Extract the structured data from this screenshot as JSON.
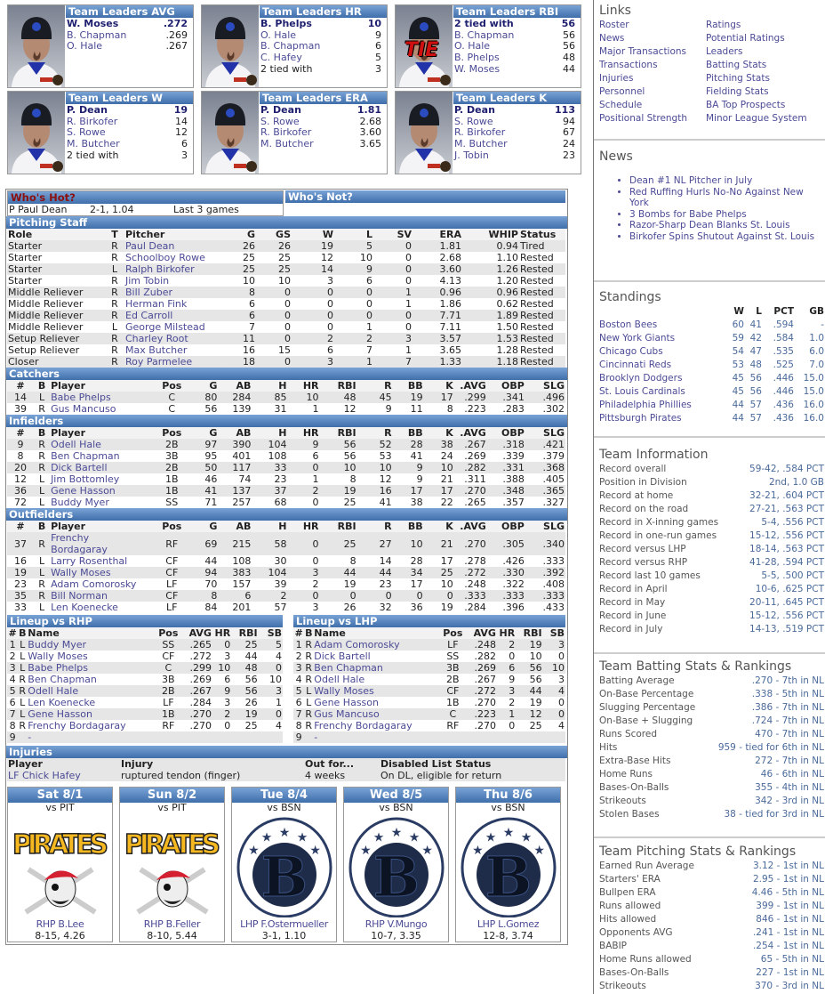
{
  "leaders": [
    {
      "title": "Team Leaders AVG",
      "tie": false,
      "rows": [
        [
          "W. Moses",
          ".272"
        ],
        [
          "B. Chapman",
          ".269"
        ],
        [
          "O. Hale",
          ".267"
        ]
      ]
    },
    {
      "title": "Team Leaders HR",
      "tie": false,
      "rows": [
        [
          "B. Phelps",
          "10"
        ],
        [
          "O. Hale",
          "9"
        ],
        [
          "B. Chapman",
          "6"
        ],
        [
          "C. Hafey",
          "5"
        ],
        [
          "2 tied with",
          "3"
        ]
      ]
    },
    {
      "title": "Team Leaders RBI",
      "tie": true,
      "tie_label": "TIE",
      "rows": [
        [
          "2 tied with",
          "56"
        ],
        [
          "B. Chapman",
          "56"
        ],
        [
          "O. Hale",
          "56"
        ],
        [
          "B. Phelps",
          "48"
        ],
        [
          "W. Moses",
          "44"
        ]
      ]
    },
    {
      "title": "Team Leaders W",
      "tie": false,
      "rows": [
        [
          "P. Dean",
          "19"
        ],
        [
          "R. Birkofer",
          "14"
        ],
        [
          "S. Rowe",
          "12"
        ],
        [
          "M. Butcher",
          "6"
        ],
        [
          "2 tied with",
          "3"
        ]
      ]
    },
    {
      "title": "Team Leaders ERA",
      "tie": false,
      "rows": [
        [
          "P. Dean",
          "1.81"
        ],
        [
          "S. Rowe",
          "2.68"
        ],
        [
          "R. Birkofer",
          "3.60"
        ],
        [
          "M. Butcher",
          "3.65"
        ]
      ]
    },
    {
      "title": "Team Leaders K",
      "tie": false,
      "rows": [
        [
          "P. Dean",
          "113"
        ],
        [
          "S. Rowe",
          "94"
        ],
        [
          "R. Birkofer",
          "67"
        ],
        [
          "M. Butcher",
          "24"
        ],
        [
          "J. Tobin",
          "23"
        ]
      ]
    }
  ],
  "hot": {
    "title": "Who's Hot?",
    "player": "P Paul Dean",
    "line": "2-1, 1.04",
    "span": "Last 3 games"
  },
  "not": {
    "title": "Who's Not?"
  },
  "pitching": {
    "title": "Pitching Staff",
    "headers": [
      "Role",
      "T",
      "Pitcher",
      "G",
      "GS",
      "W",
      "L",
      "SV",
      "ERA",
      "WHIP",
      "Status"
    ],
    "rows": [
      [
        "Starter",
        "R",
        "Paul Dean",
        "26",
        "26",
        "19",
        "5",
        "0",
        "1.81",
        "0.94",
        "Tired"
      ],
      [
        "Starter",
        "R",
        "Schoolboy Rowe",
        "25",
        "25",
        "12",
        "10",
        "0",
        "2.68",
        "1.10",
        "Rested"
      ],
      [
        "Starter",
        "L",
        "Ralph Birkofer",
        "25",
        "25",
        "14",
        "9",
        "0",
        "3.60",
        "1.26",
        "Rested"
      ],
      [
        "Starter",
        "R",
        "Jim Tobin",
        "10",
        "10",
        "3",
        "6",
        "0",
        "4.13",
        "1.20",
        "Rested"
      ],
      [
        "Middle Reliever",
        "R",
        "Bill Zuber",
        "8",
        "0",
        "0",
        "0",
        "1",
        "0.96",
        "0.96",
        "Rested"
      ],
      [
        "Middle Reliever",
        "R",
        "Herman Fink",
        "6",
        "0",
        "0",
        "0",
        "1",
        "1.86",
        "0.62",
        "Rested"
      ],
      [
        "Middle Reliever",
        "R",
        "Ed Carroll",
        "6",
        "0",
        "0",
        "0",
        "0",
        "7.71",
        "1.89",
        "Rested"
      ],
      [
        "Middle Reliever",
        "L",
        "George Milstead",
        "7",
        "0",
        "0",
        "1",
        "0",
        "7.11",
        "1.50",
        "Rested"
      ],
      [
        "Setup Reliever",
        "R",
        "Charley Root",
        "11",
        "0",
        "2",
        "2",
        "3",
        "3.57",
        "1.53",
        "Rested"
      ],
      [
        "Setup Reliever",
        "R",
        "Max Butcher",
        "16",
        "15",
        "6",
        "7",
        "1",
        "3.65",
        "1.28",
        "Rested"
      ],
      [
        "Closer",
        "R",
        "Roy Parmelee",
        "18",
        "0",
        "3",
        "1",
        "7",
        "1.33",
        "1.18",
        "Rested"
      ]
    ]
  },
  "batting_headers": [
    "#",
    "B",
    "Player",
    "Pos",
    "G",
    "AB",
    "H",
    "HR",
    "RBI",
    "R",
    "BB",
    "K",
    ".AVG",
    "OBP",
    "SLG"
  ],
  "catchers": {
    "title": "Catchers",
    "rows": [
      [
        "14",
        "L",
        "Babe Phelps",
        "C",
        "80",
        "284",
        "85",
        "10",
        "48",
        "45",
        "19",
        "17",
        ".299",
        ".341",
        ".496"
      ],
      [
        "39",
        "R",
        "Gus Mancuso",
        "C",
        "56",
        "139",
        "31",
        "1",
        "12",
        "9",
        "11",
        "8",
        ".223",
        ".283",
        ".302"
      ]
    ]
  },
  "infielders": {
    "title": "Infielders",
    "rows": [
      [
        "9",
        "R",
        "Odell Hale",
        "2B",
        "97",
        "390",
        "104",
        "9",
        "56",
        "52",
        "28",
        "38",
        ".267",
        ".318",
        ".421"
      ],
      [
        "8",
        "R",
        "Ben Chapman",
        "3B",
        "95",
        "401",
        "108",
        "6",
        "56",
        "53",
        "41",
        "24",
        ".269",
        ".339",
        ".379"
      ],
      [
        "20",
        "R",
        "Dick Bartell",
        "2B",
        "50",
        "117",
        "33",
        "0",
        "10",
        "10",
        "9",
        "10",
        ".282",
        ".331",
        ".368"
      ],
      [
        "12",
        "L",
        "Jim Bottomley",
        "1B",
        "46",
        "74",
        "23",
        "1",
        "8",
        "12",
        "9",
        "21",
        ".311",
        ".388",
        ".405"
      ],
      [
        "36",
        "L",
        "Gene Hasson",
        "1B",
        "41",
        "137",
        "37",
        "2",
        "19",
        "16",
        "17",
        "17",
        ".270",
        ".348",
        ".365"
      ],
      [
        "72",
        "L",
        "Buddy Myer",
        "SS",
        "71",
        "257",
        "68",
        "0",
        "25",
        "41",
        "38",
        "22",
        ".265",
        ".357",
        ".327"
      ]
    ]
  },
  "outfielders": {
    "title": "Outfielders",
    "rows": [
      [
        "37",
        "R",
        "Frenchy Bordagaray",
        "RF",
        "69",
        "215",
        "58",
        "0",
        "25",
        "27",
        "10",
        "21",
        ".270",
        ".305",
        ".340"
      ],
      [
        "16",
        "L",
        "Larry Rosenthal",
        "CF",
        "44",
        "108",
        "30",
        "0",
        "8",
        "14",
        "28",
        "17",
        ".278",
        ".426",
        ".333"
      ],
      [
        "19",
        "L",
        "Wally Moses",
        "CF",
        "94",
        "383",
        "104",
        "3",
        "44",
        "44",
        "34",
        "25",
        ".272",
        ".330",
        ".392"
      ],
      [
        "23",
        "R",
        "Adam Comorosky",
        "LF",
        "70",
        "157",
        "39",
        "2",
        "19",
        "23",
        "17",
        "10",
        ".248",
        ".322",
        ".408"
      ],
      [
        "35",
        "R",
        "Bill Norman",
        "CF",
        "8",
        "6",
        "2",
        "0",
        "0",
        "0",
        "0",
        "0",
        ".333",
        ".333",
        ".333"
      ],
      [
        "33",
        "L",
        "Len Koenecke",
        "LF",
        "84",
        "201",
        "57",
        "3",
        "26",
        "32",
        "36",
        "19",
        ".284",
        ".396",
        ".433"
      ]
    ]
  },
  "lineup_headers": [
    "#",
    "B",
    "Name",
    "Pos",
    "AVG",
    "HR",
    "RBI",
    "SB"
  ],
  "lineup_rhp": {
    "title": "Lineup vs RHP",
    "rows": [
      [
        "1",
        "L",
        "Buddy Myer",
        "SS",
        ".265",
        "0",
        "25",
        "5"
      ],
      [
        "2",
        "L",
        "Wally Moses",
        "CF",
        ".272",
        "3",
        "44",
        "4"
      ],
      [
        "3",
        "L",
        "Babe Phelps",
        "C",
        ".299",
        "10",
        "48",
        "0"
      ],
      [
        "4",
        "R",
        "Ben Chapman",
        "3B",
        ".269",
        "6",
        "56",
        "10"
      ],
      [
        "5",
        "R",
        "Odell Hale",
        "2B",
        ".267",
        "9",
        "56",
        "3"
      ],
      [
        "6",
        "L",
        "Len Koenecke",
        "LF",
        ".284",
        "3",
        "26",
        "1"
      ],
      [
        "7",
        "L",
        "Gene Hasson",
        "1B",
        ".270",
        "2",
        "19",
        "0"
      ],
      [
        "8",
        "R",
        "Frenchy Bordagaray",
        "RF",
        ".270",
        "0",
        "25",
        "4"
      ],
      [
        "9",
        "",
        "-",
        "",
        "",
        "",
        "",
        ""
      ]
    ]
  },
  "lineup_lhp": {
    "title": "Lineup vs LHP",
    "rows": [
      [
        "1",
        "R",
        "Adam Comorosky",
        "LF",
        ".248",
        "2",
        "19",
        "3"
      ],
      [
        "2",
        "R",
        "Dick Bartell",
        "SS",
        ".282",
        "0",
        "10",
        "0"
      ],
      [
        "3",
        "R",
        "Ben Chapman",
        "3B",
        ".269",
        "6",
        "56",
        "10"
      ],
      [
        "4",
        "R",
        "Odell Hale",
        "2B",
        ".267",
        "9",
        "56",
        "3"
      ],
      [
        "5",
        "L",
        "Wally Moses",
        "CF",
        ".272",
        "3",
        "44",
        "4"
      ],
      [
        "6",
        "L",
        "Gene Hasson",
        "1B",
        ".270",
        "2",
        "19",
        "0"
      ],
      [
        "7",
        "R",
        "Gus Mancuso",
        "C",
        ".223",
        "1",
        "12",
        "0"
      ],
      [
        "8",
        "R",
        "Frenchy Bordagaray",
        "RF",
        ".270",
        "0",
        "25",
        "4"
      ],
      [
        "9",
        "",
        "-",
        "",
        "",
        "",
        "",
        ""
      ]
    ]
  },
  "injuries": {
    "title": "Injuries",
    "headers": [
      "Player",
      "Injury",
      "Out for...",
      "Disabled List Status"
    ],
    "rows": [
      [
        "LF Chick Hafey",
        "ruptured tendon (finger)",
        "4 weeks",
        "On DL, eligible for return"
      ]
    ]
  },
  "schedule": [
    {
      "day": "Sat 8/1",
      "opp": "vs PIT",
      "logo": "pirates",
      "logo_text": "PIRATES",
      "pitcher": "RHP B.Lee",
      "record": "8-15, 4.26"
    },
    {
      "day": "Sun 8/2",
      "opp": "vs PIT",
      "logo": "pirates",
      "logo_text": "PIRATES",
      "pitcher": "RHP B.Feller",
      "record": "8-10, 5.44"
    },
    {
      "day": "Tue 8/4",
      "opp": "vs BSN",
      "logo": "bees",
      "logo_text": "B",
      "pitcher": "LHP F.Ostermueller",
      "record": "3-1, 1.10"
    },
    {
      "day": "Wed 8/5",
      "opp": "vs BSN",
      "logo": "bees",
      "logo_text": "B",
      "pitcher": "RHP V.Mungo",
      "record": "10-7, 3.35"
    },
    {
      "day": "Thu 8/6",
      "opp": "vs BSN",
      "logo": "bees",
      "logo_text": "B",
      "pitcher": "LHP L.Gomez",
      "record": "12-8, 3.74"
    }
  ],
  "links": {
    "title": "Links",
    "items": [
      "Roster",
      "Ratings",
      "News",
      "Potential Ratings",
      "Major Transactions",
      "Leaders",
      "Transactions",
      "Batting Stats",
      "Injuries",
      "Pitching Stats",
      "Personnel",
      "Fielding Stats",
      "Schedule",
      "BA Top Prospects",
      "Positional Strength",
      "Minor League System"
    ]
  },
  "news": {
    "title": "News",
    "items": [
      "Dean #1 NL Pitcher in July",
      "Red Ruffing Hurls No-No Against New York",
      "3 Bombs for Babe Phelps",
      "Razor-Sharp Dean Blanks St. Louis",
      "Birkofer Spins Shutout Against St. Louis"
    ]
  },
  "standings": {
    "title": "Standings",
    "headers": [
      "W",
      "L",
      "PCT",
      "GB"
    ],
    "rows": [
      [
        "Boston Bees",
        "60",
        "41",
        ".594",
        "-"
      ],
      [
        "New York Giants",
        "59",
        "42",
        ".584",
        "1.0"
      ],
      [
        "Chicago Cubs",
        "54",
        "47",
        ".535",
        "6.0"
      ],
      [
        "Cincinnati Reds",
        "53",
        "48",
        ".525",
        "7.0"
      ],
      [
        "Brooklyn Dodgers",
        "45",
        "56",
        ".446",
        "15.0"
      ],
      [
        "St. Louis Cardinals",
        "45",
        "56",
        ".446",
        "15.0"
      ],
      [
        "Philadelphia Phillies",
        "44",
        "57",
        ".436",
        "16.0"
      ],
      [
        "Pittsburgh Pirates",
        "44",
        "57",
        ".436",
        "16.0"
      ]
    ]
  },
  "team_info": {
    "title": "Team Information",
    "rows": [
      [
        "Record overall",
        "59-42, .584 PCT"
      ],
      [
        "Position in Division",
        "2nd, 1.0 GB"
      ],
      [
        "Record at home",
        "32-21, .604 PCT"
      ],
      [
        "Record on the road",
        "27-21, .563 PCT"
      ],
      [
        "Record in X-inning games",
        "5-4, .556 PCT"
      ],
      [
        "Record in one-run games",
        "15-12, .556 PCT"
      ],
      [
        "Record versus LHP",
        "18-14, .563 PCT"
      ],
      [
        "Record versus RHP",
        "41-28, .594 PCT"
      ],
      [
        "Record last 10 games",
        "5-5, .500 PCT"
      ],
      [
        "Record in April",
        "10-6, .625 PCT"
      ],
      [
        "Record in May",
        "20-11, .645 PCT"
      ],
      [
        "Record in June",
        "15-12, .556 PCT"
      ],
      [
        "Record in July",
        "14-13, .519 PCT"
      ]
    ]
  },
  "team_batting": {
    "title": "Team Batting Stats & Rankings",
    "rows": [
      [
        "Batting Average",
        ".270 - 7th in NL"
      ],
      [
        "On-Base Percentage",
        ".338 - 5th in NL"
      ],
      [
        "Slugging Percentage",
        ".386 - 7th in NL"
      ],
      [
        "On-Base + Slugging",
        ".724 - 7th in NL"
      ],
      [
        "Runs Scored",
        "470 - 7th in NL"
      ],
      [
        "Hits",
        "959 - tied for 6th in NL"
      ],
      [
        "Extra-Base Hits",
        "272 - 7th in NL"
      ],
      [
        "Home Runs",
        "46 - 6th in NL"
      ],
      [
        "Bases-On-Balls",
        "355 - 4th in NL"
      ],
      [
        "Strikeouts",
        "342 - 3rd in NL"
      ],
      [
        "Stolen Bases",
        "38 - tied for 3rd in NL"
      ]
    ]
  },
  "team_pitching": {
    "title": "Team Pitching Stats & Rankings",
    "rows": [
      [
        "Earned Run Average",
        "3.12 - 1st in NL"
      ],
      [
        "Starters' ERA",
        "2.95 - 1st in NL"
      ],
      [
        "Bullpen ERA",
        "4.46 - 5th in NL"
      ],
      [
        "Runs allowed",
        "399 - 1st in NL"
      ],
      [
        "Hits allowed",
        "846 - 1st in NL"
      ],
      [
        "Opponents AVG",
        ".241 - 1st in NL"
      ],
      [
        "BABIP",
        ".254 - 1st in NL"
      ],
      [
        "Home Runs allowed",
        "65 - 5th in NL"
      ],
      [
        "Bases-On-Balls",
        "227 - 1st in NL"
      ],
      [
        "Strikeouts",
        "370 - 3rd in NL"
      ]
    ]
  }
}
